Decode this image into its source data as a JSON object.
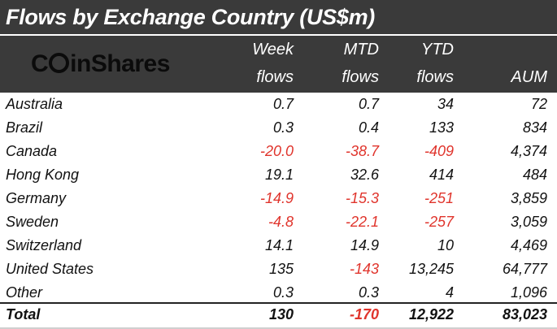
{
  "title": "Flows by Exchange Country (US$m)",
  "logo": {
    "before": "C",
    "after": "inShares"
  },
  "columns": {
    "week": [
      "Week",
      "flows"
    ],
    "mtd": [
      "MTD",
      "flows"
    ],
    "ytd": [
      "YTD",
      "flows"
    ],
    "aum": "AUM"
  },
  "colors": {
    "header_bg": "#3a3a3a",
    "negative": "#e0342c"
  },
  "rows": [
    {
      "name": "Australia",
      "week": "0.7",
      "mtd": "0.7",
      "ytd": "34",
      "aum": "72"
    },
    {
      "name": "Brazil",
      "week": "0.3",
      "mtd": "0.4",
      "ytd": "133",
      "aum": "834"
    },
    {
      "name": "Canada",
      "week": "-20.0",
      "mtd": "-38.7",
      "ytd": "-409",
      "aum": "4,374"
    },
    {
      "name": "Hong Kong",
      "week": "19.1",
      "mtd": "32.6",
      "ytd": "414",
      "aum": "484"
    },
    {
      "name": "Germany",
      "week": "-14.9",
      "mtd": "-15.3",
      "ytd": "-251",
      "aum": "3,859"
    },
    {
      "name": "Sweden",
      "week": "-4.8",
      "mtd": "-22.1",
      "ytd": "-257",
      "aum": "3,059"
    },
    {
      "name": "Switzerland",
      "week": "14.1",
      "mtd": "14.9",
      "ytd": "10",
      "aum": "4,469"
    },
    {
      "name": "United States",
      "week": "135",
      "mtd": "-143",
      "ytd": "13,245",
      "aum": "64,777"
    },
    {
      "name": "Other",
      "week": "0.3",
      "mtd": "0.3",
      "ytd": "4",
      "aum": "1,096"
    }
  ],
  "total": {
    "name": "Total",
    "week": "130",
    "mtd": "-170",
    "ytd": "12,922",
    "aum": "83,023"
  }
}
